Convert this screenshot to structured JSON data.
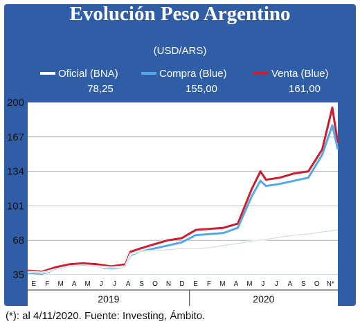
{
  "chart_data": {
    "type": "line",
    "title": "Evolución Peso Argentino",
    "subtitle": "(USD/ARS)",
    "ylim": [
      35,
      200
    ],
    "yticks": [
      35,
      68,
      101,
      134,
      167,
      200
    ],
    "x_range": [
      "2019-01-01",
      "2020-11-04"
    ],
    "month_labels": [
      "E",
      "F",
      "M",
      "A",
      "M",
      "J",
      "J",
      "A",
      "S",
      "O",
      "N",
      "D",
      "E",
      "F",
      "M",
      "A",
      "M",
      "J",
      "J",
      "A",
      "S",
      "O",
      "N*"
    ],
    "year_labels": [
      "2019",
      "2020"
    ],
    "grid": true,
    "legend_position": "top",
    "series": [
      {
        "name": "Oficial (BNA)",
        "last_value": "78,25",
        "color": "#ffffff",
        "x": [
          "2019-01-01",
          "2019-02-01",
          "2019-03-01",
          "2019-04-01",
          "2019-05-01",
          "2019-06-01",
          "2019-07-01",
          "2019-08-01",
          "2019-08-12",
          "2019-09-01",
          "2019-10-01",
          "2019-11-01",
          "2019-12-01",
          "2020-01-01",
          "2020-02-01",
          "2020-03-01",
          "2020-04-01",
          "2020-05-01",
          "2020-06-01",
          "2020-07-01",
          "2020-08-01",
          "2020-09-01",
          "2020-10-01",
          "2020-11-04"
        ],
        "values": [
          38,
          37,
          40,
          43,
          44,
          43,
          42,
          43,
          55,
          57,
          58,
          59,
          60,
          60,
          61,
          63,
          65,
          67,
          69,
          71,
          73,
          74,
          76,
          78
        ]
      },
      {
        "name": "Compra (Blue)",
        "last_value": "155,00",
        "color": "#52a9e6",
        "x": [
          "2019-01-01",
          "2019-02-01",
          "2019-03-01",
          "2019-04-01",
          "2019-05-01",
          "2019-06-01",
          "2019-07-01",
          "2019-08-01",
          "2019-08-12",
          "2019-09-01",
          "2019-10-01",
          "2019-11-01",
          "2019-12-01",
          "2020-01-01",
          "2020-02-01",
          "2020-03-01",
          "2020-04-01",
          "2020-05-01",
          "2020-05-20",
          "2020-06-01",
          "2020-07-01",
          "2020-08-01",
          "2020-09-01",
          "2020-10-01",
          "2020-10-23",
          "2020-11-04"
        ],
        "values": [
          37,
          36,
          40,
          43,
          44,
          43,
          41,
          43,
          54,
          57,
          60,
          63,
          66,
          73,
          74,
          75,
          80,
          110,
          125,
          120,
          122,
          125,
          128,
          150,
          178,
          155
        ]
      },
      {
        "name": "Venta (Blue)",
        "last_value": "161,00",
        "color": "#d01c2c",
        "x": [
          "2019-01-01",
          "2019-02-01",
          "2019-03-01",
          "2019-04-01",
          "2019-05-01",
          "2019-06-01",
          "2019-07-01",
          "2019-08-01",
          "2019-08-12",
          "2019-09-01",
          "2019-10-01",
          "2019-11-01",
          "2019-12-01",
          "2020-01-01",
          "2020-02-01",
          "2020-03-01",
          "2020-04-01",
          "2020-05-01",
          "2020-05-20",
          "2020-06-01",
          "2020-07-01",
          "2020-08-01",
          "2020-09-01",
          "2020-10-01",
          "2020-10-23",
          "2020-11-04"
        ],
        "values": [
          39,
          38,
          42,
          45,
          46,
          45,
          43,
          45,
          57,
          60,
          64,
          68,
          70,
          78,
          79,
          80,
          84,
          117,
          134,
          126,
          128,
          132,
          134,
          155,
          195,
          161
        ]
      }
    ]
  },
  "footer": {
    "note": "(*): al 4/11/2020. Fuente: Investing, Ámbito."
  }
}
